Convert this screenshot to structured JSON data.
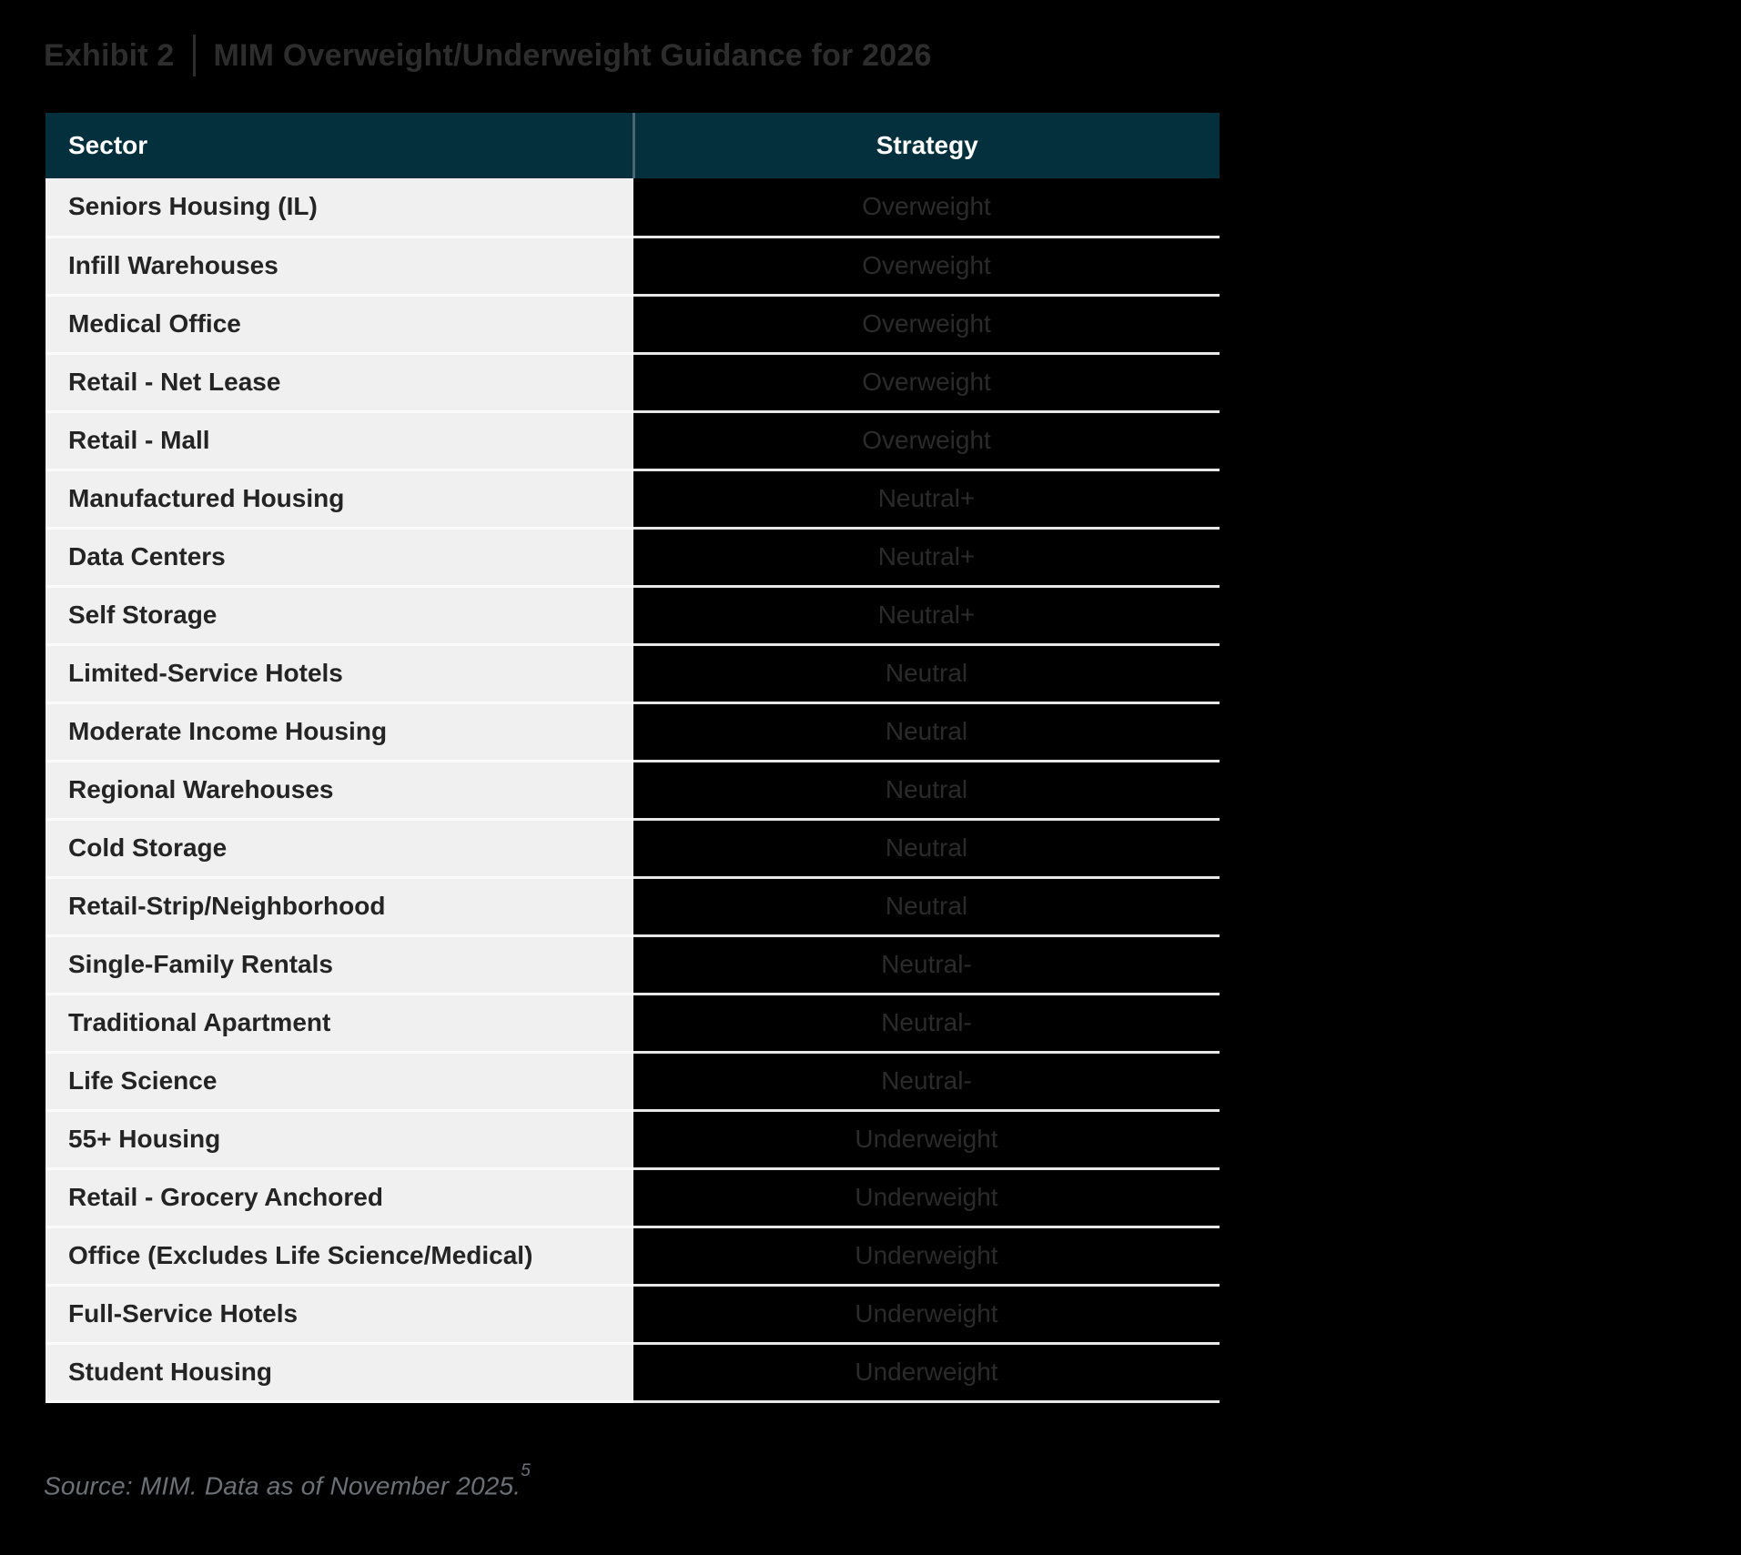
{
  "page": {
    "exhibit_label": "Exhibit 2",
    "title": "MIM Overweight/Underweight Guidance for 2026",
    "source_text": "Source: MIM. Data as of November 2025.",
    "source_footnote": "5"
  },
  "table": {
    "columns": [
      "Sector",
      "Strategy"
    ],
    "rows": [
      {
        "sector": "Seniors Housing (IL)",
        "strategy": "Overweight"
      },
      {
        "sector": "Infill Warehouses",
        "strategy": "Overweight"
      },
      {
        "sector": "Medical Office",
        "strategy": "Overweight"
      },
      {
        "sector": "Retail - Net Lease",
        "strategy": "Overweight"
      },
      {
        "sector": "Retail - Mall",
        "strategy": "Overweight"
      },
      {
        "sector": "Manufactured Housing",
        "strategy": "Neutral+"
      },
      {
        "sector": "Data Centers",
        "strategy": "Neutral+"
      },
      {
        "sector": "Self Storage",
        "strategy": "Neutral+"
      },
      {
        "sector": "Limited-Service Hotels",
        "strategy": "Neutral"
      },
      {
        "sector": "Moderate Income Housing",
        "strategy": "Neutral"
      },
      {
        "sector": "Regional Warehouses",
        "strategy": "Neutral"
      },
      {
        "sector": "Cold Storage",
        "strategy": "Neutral"
      },
      {
        "sector": "Retail-Strip/Neighborhood",
        "strategy": "Neutral"
      },
      {
        "sector": "Single-Family Rentals",
        "strategy": "Neutral-"
      },
      {
        "sector": "Traditional Apartment",
        "strategy": "Neutral-"
      },
      {
        "sector": "Life Science",
        "strategy": "Neutral-"
      },
      {
        "sector": "55+ Housing",
        "strategy": "Underweight"
      },
      {
        "sector": "Retail - Grocery Anchored",
        "strategy": "Underweight"
      },
      {
        "sector": "Office (Excludes Life Science/Medical)",
        "strategy": "Underweight"
      },
      {
        "sector": "Full-Service Hotels",
        "strategy": "Underweight"
      },
      {
        "sector": "Student Housing",
        "strstrategy_note": "",
        "strategy": "Underweight"
      }
    ]
  },
  "colors": {
    "page_background": "#000000",
    "title_text": "#2d2d2d",
    "header_background": "#04303e",
    "header_text": "#ffffff",
    "header_divider": "#4b6672",
    "sector_cell_background": "#f0f0f0",
    "sector_cell_text": "#242424",
    "strategy_cell_background": "#000000",
    "strategy_cell_text": "#2b2b2b",
    "row_separator": "#e8e8e8",
    "source_text": "#6b7176"
  }
}
